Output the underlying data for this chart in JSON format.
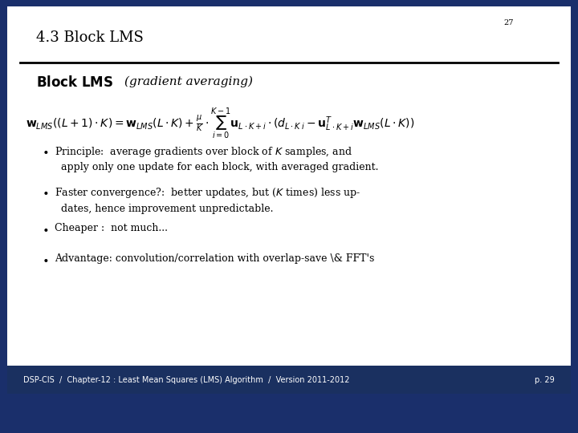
{
  "page_number": "27",
  "title": "4.3 Block LMS",
  "section_label": "Block LMS",
  "section_subtitle": "(gradient averaging)",
  "footer_text": "DSP-CIS  /  Chapter-12 : Least Mean Squares (LMS) Algorithm  /  Version 2011-2012",
  "footer_page": "p. 29",
  "bg_color": "#ffffff",
  "border_color": "#1a2f6b",
  "footer_bg_color": "#1a3060",
  "footer_text_color": "#ffffff",
  "title_color": "#000000",
  "body_text_color": "#000000",
  "page_num_color": "#000000",
  "title_fontsize": 13,
  "section_label_fontsize": 11,
  "formula_fontsize": 9,
  "bullet_fontsize": 9,
  "footer_fontsize": 7,
  "page_num_fontsize": 7,
  "border_width": 6
}
